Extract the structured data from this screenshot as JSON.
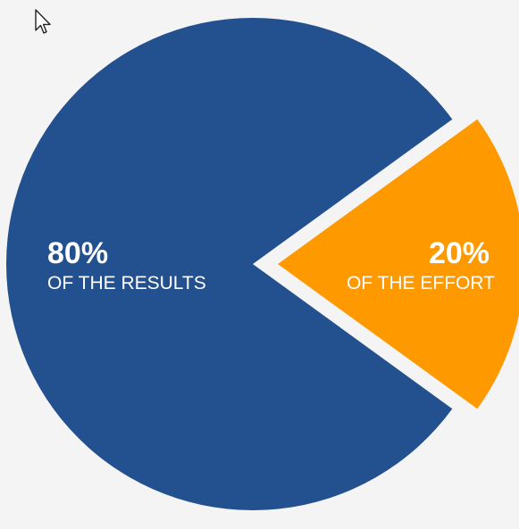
{
  "chart_data": {
    "type": "pie",
    "title": "",
    "slices": [
      {
        "value": 80,
        "percent_label": "80%",
        "description": "OF THE RESULTS",
        "color": "#23518f",
        "exploded": false
      },
      {
        "value": 20,
        "percent_label": "20%",
        "description": "OF THE EFFORT",
        "color": "#fe9900",
        "exploded": true
      }
    ]
  },
  "cursor": {
    "icon": "mouse-pointer-icon"
  }
}
